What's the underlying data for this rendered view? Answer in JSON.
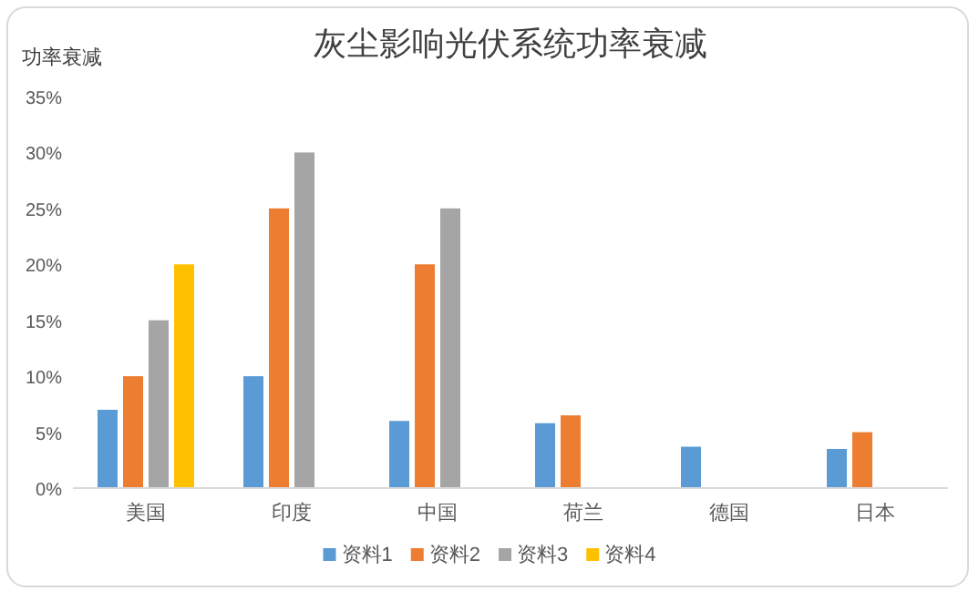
{
  "chart_data": {
    "type": "bar",
    "title": "灰尘影响光伏系统功率衰减",
    "ylabel": "功率衰减",
    "categories": [
      "美国",
      "印度",
      "中国",
      "荷兰",
      "德国",
      "日本"
    ],
    "series": [
      {
        "name": "资料1",
        "color": "#5b9bd5",
        "values": [
          7,
          10,
          6,
          5.8,
          3.7,
          3.5
        ]
      },
      {
        "name": "资料2",
        "color": "#ed7d31",
        "values": [
          10,
          25,
          20,
          6.5,
          null,
          5
        ]
      },
      {
        "name": "资料3",
        "color": "#a5a5a5",
        "values": [
          15,
          30,
          25,
          null,
          null,
          null
        ]
      },
      {
        "name": "资料4",
        "color": "#ffc000",
        "values": [
          20,
          null,
          null,
          null,
          null,
          null
        ]
      }
    ],
    "ylim": [
      0,
      35
    ],
    "yticks": [
      {
        "value": 0,
        "label": "0%"
      },
      {
        "value": 5,
        "label": "5%"
      },
      {
        "value": 10,
        "label": "10%"
      },
      {
        "value": 15,
        "label": "15%"
      },
      {
        "value": 20,
        "label": "20%"
      },
      {
        "value": 25,
        "label": "25%"
      },
      {
        "value": 30,
        "label": "30%"
      },
      {
        "value": 35,
        "label": "35%"
      }
    ],
    "legend": "bottom"
  }
}
